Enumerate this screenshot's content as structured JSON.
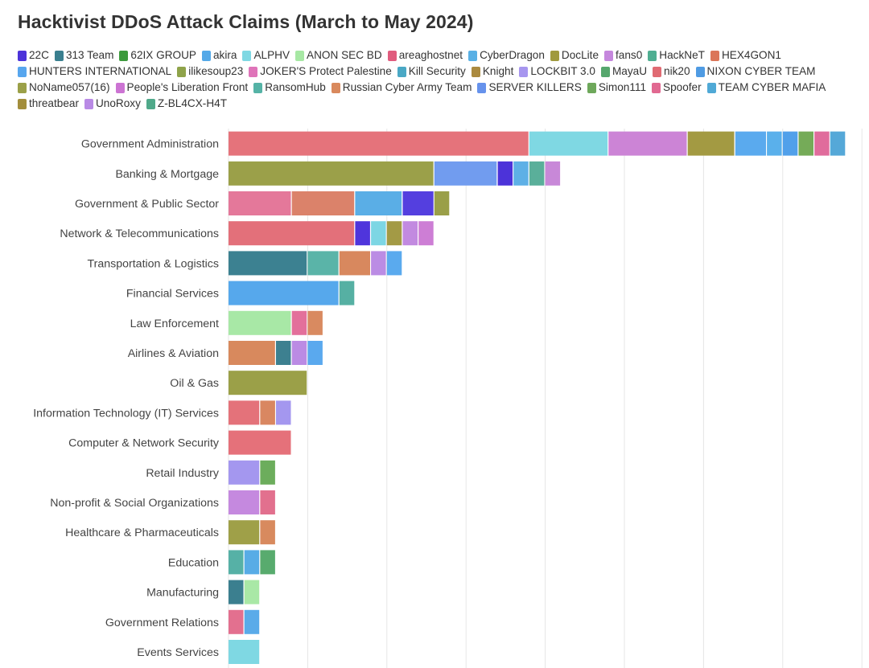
{
  "chart_data": {
    "type": "bar",
    "orientation": "horizontal",
    "stacked": true,
    "title": "Hacktivist DDoS Attack Claims (March to May 2024)",
    "xlim": [
      0,
      8
    ],
    "grid": true,
    "legend_position": "top",
    "groups": [
      {
        "name": "22C",
        "color": "#4c33d9"
      },
      {
        "name": "313 Team",
        "color": "#3a7f8f"
      },
      {
        "name": "62IX GROUP",
        "color": "#3d9a3d"
      },
      {
        "name": "akira",
        "color": "#54a9e8"
      },
      {
        "name": "ALPHV",
        "color": "#7fd8e3"
      },
      {
        "name": "ANON SEC BD",
        "color": "#a7e8a4"
      },
      {
        "name": "areaghostnet",
        "color": "#e05c7e"
      },
      {
        "name": "CyberDragon",
        "color": "#59b0e5"
      },
      {
        "name": "DocLite",
        "color": "#a09a3e"
      },
      {
        "name": "fans0",
        "color": "#c587dd"
      },
      {
        "name": "HackNeT",
        "color": "#4fae91"
      },
      {
        "name": "HEX4GON1",
        "color": "#db7659"
      },
      {
        "name": "HUNTERS INTERNATIONAL",
        "color": "#57a6ee"
      },
      {
        "name": "ilikesoup23",
        "color": "#8fa34a"
      },
      {
        "name": "JOKER'S Protect Palestine",
        "color": "#df74b9"
      },
      {
        "name": "Kill Security",
        "color": "#4aa8c5"
      },
      {
        "name": "Knight",
        "color": "#ab8a3f"
      },
      {
        "name": "LOCKBIT 3.0",
        "color": "#a796ef"
      },
      {
        "name": "MayaU",
        "color": "#56a76d"
      },
      {
        "name": "nik20",
        "color": "#e06b73"
      },
      {
        "name": "NIXON CYBER TEAM",
        "color": "#4f9be3"
      },
      {
        "name": "NoName057(16)",
        "color": "#9ba048"
      },
      {
        "name": "People's Liberation Front",
        "color": "#cc74d3"
      },
      {
        "name": "RansomHub",
        "color": "#55b3a6"
      },
      {
        "name": "Russian Cyber Army Team",
        "color": "#d9895d"
      },
      {
        "name": "SERVER KILLERS",
        "color": "#6692ec"
      },
      {
        "name": "Simon111",
        "color": "#6ea85b"
      },
      {
        "name": "Spoofer",
        "color": "#e16991"
      },
      {
        "name": "TEAM CYBER MAFIA",
        "color": "#50a9d6"
      },
      {
        "name": "threatbear",
        "color": "#a38e3c"
      },
      {
        "name": "UnoRoxy",
        "color": "#b98ae5"
      },
      {
        "name": "Z-BL4CX-H4T",
        "color": "#50a98a"
      }
    ],
    "categories": [
      {
        "name": "Government Administration",
        "segments": [
          {
            "g": "nik20",
            "v": 3.8,
            "color": "#e5737b"
          },
          {
            "g": "ALPHV",
            "v": 1.0,
            "color": "#7fd8e3"
          },
          {
            "g": "People's Liberation Front",
            "v": 1.0,
            "color": "#cc84d6"
          },
          {
            "g": "NoName057(16)",
            "v": 0.6,
            "color": "#a39a42"
          },
          {
            "g": "HUNTERS INTERNATIONAL",
            "v": 0.4,
            "color": "#5aaaee"
          },
          {
            "g": "CyberDragon",
            "v": 0.2,
            "color": "#5ab0eb"
          },
          {
            "g": "NIXON CYBER TEAM",
            "v": 0.2,
            "color": "#51a0ea"
          },
          {
            "g": "Simon111",
            "v": 0.2,
            "color": "#75ab58"
          },
          {
            "g": "Spoofer",
            "v": 0.2,
            "color": "#e06c9c"
          },
          {
            "g": "TEAM CYBER MAFIA",
            "v": 0.2,
            "color": "#55a8d8"
          }
        ]
      },
      {
        "name": "Banking & Mortgage",
        "segments": [
          {
            "g": "NoName057(16)",
            "v": 2.6,
            "color": "#9ba049"
          },
          {
            "g": "SERVER KILLERS",
            "v": 0.8,
            "color": "#719cef"
          },
          {
            "g": "22C",
            "v": 0.2,
            "color": "#4c33d9"
          },
          {
            "g": "CyberDragon",
            "v": 0.2,
            "color": "#5eb0e6"
          },
          {
            "g": "RansomHub",
            "v": 0.2,
            "color": "#5aaf9a"
          },
          {
            "g": "fans0",
            "v": 0.2,
            "color": "#c888d8"
          }
        ]
      },
      {
        "name": "Government & Public Sector",
        "segments": [
          {
            "g": "Spoofer",
            "v": 0.8,
            "color": "#e4789a"
          },
          {
            "g": "Russian Cyber Army Team",
            "v": 0.8,
            "color": "#db826a"
          },
          {
            "g": "akira",
            "v": 0.6,
            "color": "#5aaee6"
          },
          {
            "g": "22C",
            "v": 0.4,
            "color": "#543fdf"
          },
          {
            "g": "NoName057(16)",
            "v": 0.2,
            "color": "#9a9f48"
          }
        ]
      },
      {
        "name": "Network & Telecommunications",
        "segments": [
          {
            "g": "nik20",
            "v": 1.6,
            "color": "#e3707a"
          },
          {
            "g": "22C",
            "v": 0.2,
            "color": "#4f35dc"
          },
          {
            "g": "ALPHV",
            "v": 0.2,
            "color": "#7dd6e4"
          },
          {
            "g": "DocLite",
            "v": 0.2,
            "color": "#a39a45"
          },
          {
            "g": "fans0",
            "v": 0.2,
            "color": "#c28ae0"
          },
          {
            "g": "People's Liberation Front",
            "v": 0.2,
            "color": "#cd7ed5"
          }
        ]
      },
      {
        "name": "Transportation & Logistics",
        "segments": [
          {
            "g": "313 Team",
            "v": 1.0,
            "color": "#3c8191"
          },
          {
            "g": "RansomHub",
            "v": 0.4,
            "color": "#5ab4a8"
          },
          {
            "g": "Russian Cyber Army Team",
            "v": 0.4,
            "color": "#d8885e"
          },
          {
            "g": "UnoRoxy",
            "v": 0.2,
            "color": "#bb8ce4"
          },
          {
            "g": "HUNTERS INTERNATIONAL",
            "v": 0.2,
            "color": "#5aaaee"
          }
        ]
      },
      {
        "name": "Financial Services",
        "segments": [
          {
            "g": "HUNTERS INTERNATIONAL",
            "v": 1.4,
            "color": "#56a8ec"
          },
          {
            "g": "RansomHub",
            "v": 0.2,
            "color": "#56b0a3"
          }
        ]
      },
      {
        "name": "Law Enforcement",
        "segments": [
          {
            "g": "ANON SEC BD",
            "v": 0.8,
            "color": "#a8e8a6"
          },
          {
            "g": "Spoofer",
            "v": 0.2,
            "color": "#e3709b"
          },
          {
            "g": "Russian Cyber Army Team",
            "v": 0.2,
            "color": "#d98a60"
          }
        ]
      },
      {
        "name": "Airlines & Aviation",
        "segments": [
          {
            "g": "Russian Cyber Army Team",
            "v": 0.6,
            "color": "#d8895d"
          },
          {
            "g": "313 Team",
            "v": 0.2,
            "color": "#3d8090"
          },
          {
            "g": "UnoRoxy",
            "v": 0.2,
            "color": "#bb8be4"
          },
          {
            "g": "HUNTERS INTERNATIONAL",
            "v": 0.2,
            "color": "#5aa9ee"
          }
        ]
      },
      {
        "name": "Oil & Gas",
        "segments": [
          {
            "g": "NoName057(16)",
            "v": 1.0,
            "color": "#9ba048"
          }
        ]
      },
      {
        "name": "Information Technology (IT) Services",
        "segments": [
          {
            "g": "nik20",
            "v": 0.4,
            "color": "#e4727a"
          },
          {
            "g": "Russian Cyber Army Team",
            "v": 0.2,
            "color": "#d98761"
          },
          {
            "g": "LOCKBIT 3.0",
            "v": 0.2,
            "color": "#a497ef"
          }
        ]
      },
      {
        "name": "Computer & Network Security",
        "segments": [
          {
            "g": "nik20",
            "v": 0.8,
            "color": "#e5717a"
          }
        ]
      },
      {
        "name": "Retail Industry",
        "segments": [
          {
            "g": "LOCKBIT 3.0",
            "v": 0.4,
            "color": "#a497ef"
          },
          {
            "g": "Simon111",
            "v": 0.2,
            "color": "#6cad5c"
          }
        ]
      },
      {
        "name": "Non-profit & Social Organizations",
        "segments": [
          {
            "g": "fans0",
            "v": 0.4,
            "color": "#c589df"
          },
          {
            "g": "Spoofer",
            "v": 0.2,
            "color": "#e2708e"
          }
        ]
      },
      {
        "name": "Healthcare & Pharmaceuticals",
        "segments": [
          {
            "g": "NoName057(16)",
            "v": 0.4,
            "color": "#9fa048"
          },
          {
            "g": "Russian Cyber Army Team",
            "v": 0.2,
            "color": "#d88a5e"
          }
        ]
      },
      {
        "name": "Education",
        "segments": [
          {
            "g": "RansomHub",
            "v": 0.2,
            "color": "#56b1a6"
          },
          {
            "g": "akira",
            "v": 0.2,
            "color": "#58ace6"
          },
          {
            "g": "MayaU",
            "v": 0.2,
            "color": "#58ab6e"
          }
        ]
      },
      {
        "name": "Manufacturing",
        "segments": [
          {
            "g": "313 Team",
            "v": 0.2,
            "color": "#3b7f8f"
          },
          {
            "g": "ANON SEC BD",
            "v": 0.2,
            "color": "#a9e8a6"
          }
        ]
      },
      {
        "name": "Government Relations",
        "segments": [
          {
            "g": "Spoofer",
            "v": 0.2,
            "color": "#e3708f"
          },
          {
            "g": "CyberDragon",
            "v": 0.2,
            "color": "#5aabe9"
          }
        ]
      },
      {
        "name": "Events Services",
        "segments": [
          {
            "g": "ALPHV",
            "v": 0.4,
            "color": "#7fd8e3"
          }
        ]
      }
    ]
  }
}
